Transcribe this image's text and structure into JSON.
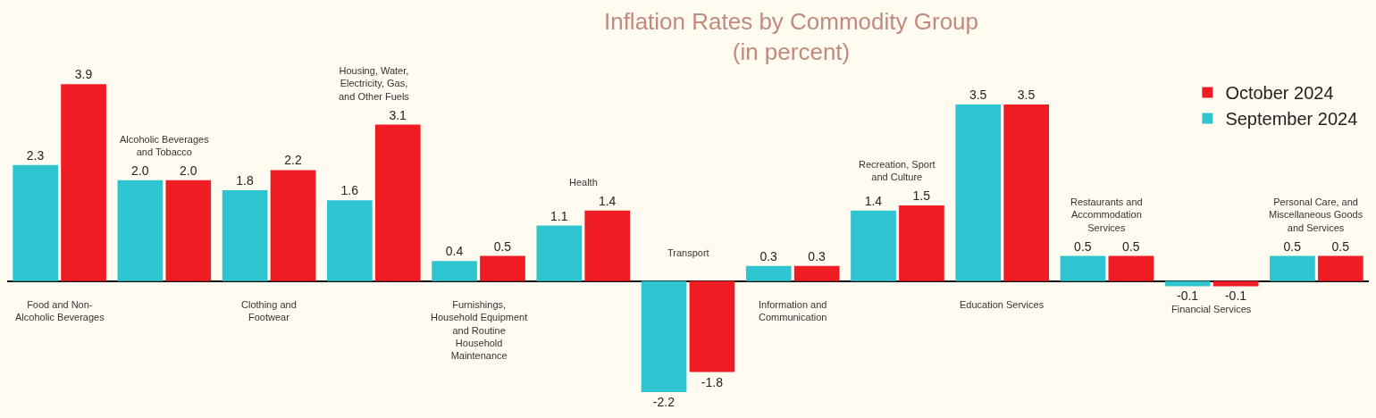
{
  "chart_data": {
    "type": "bar",
    "title": "Inflation Rates by Commodity Group",
    "subtitle": "(in percent)",
    "categories": [
      "Food and Non-Alcoholic Beverages",
      "Alcoholic Beverages and Tobacco",
      "Clothing and Footwear",
      "Housing, Water, Electricity, Gas, and Other Fuels",
      "Furnishings, Household Equipment and Routine Household Maintenance",
      "Health",
      "Transport",
      "Information and Communication",
      "Recreation, Sport and Culture",
      "Education Services",
      "Restaurants and Accommodation Services",
      "Financial Services",
      "Personal Care, and Miscellaneous Goods and Services"
    ],
    "series": [
      {
        "name": "September 2024",
        "color": "#2ec5d0",
        "values": [
          2.3,
          2.0,
          1.8,
          1.6,
          0.4,
          1.1,
          -2.2,
          0.3,
          1.4,
          3.5,
          0.5,
          -0.1,
          0.5
        ],
        "value_labels": [
          "2.3",
          "2.0",
          "1.8",
          "1.6",
          "0.4",
          "1.1",
          "-2.2",
          "0.3",
          "1.4",
          "3.5",
          "0.5",
          "-0.1",
          "0.5"
        ]
      },
      {
        "name": "October 2024",
        "color": "#f01c24",
        "values": [
          3.9,
          2.0,
          2.2,
          3.1,
          0.5,
          1.4,
          -1.8,
          0.3,
          1.5,
          3.5,
          0.5,
          -0.1,
          0.5
        ],
        "value_labels": [
          "3.9",
          "2.0",
          "2.2",
          "3.1",
          "0.5",
          "1.4",
          "-1.8",
          "0.3",
          "1.5",
          "3.5",
          "0.5",
          "-0.1",
          "0.5"
        ]
      }
    ],
    "legend": "top right",
    "grid": false
  }
}
